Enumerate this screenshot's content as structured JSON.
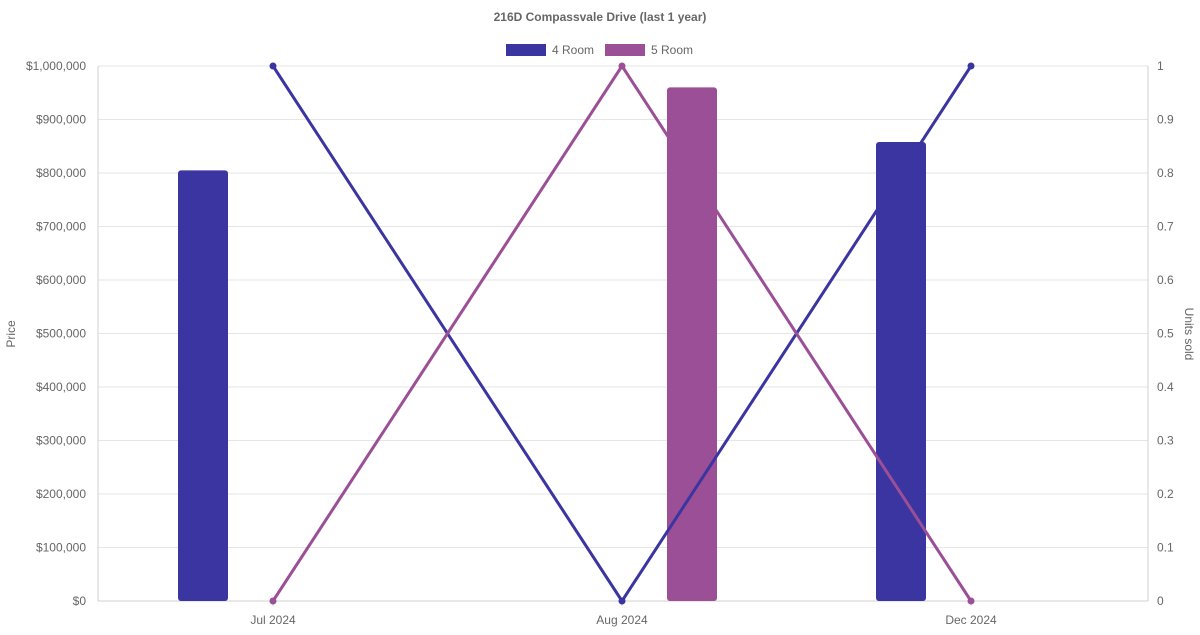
{
  "chart_data": {
    "type": "bar",
    "title": "216D Compassvale Drive (last 1 year)",
    "categories": [
      "Jul 2024",
      "Aug 2024",
      "Dec 2024"
    ],
    "y_left": {
      "label": "Price",
      "min": 0,
      "max": 1000000,
      "ticks": [
        "$0",
        "$100,000",
        "$200,000",
        "$300,000",
        "$400,000",
        "$500,000",
        "$600,000",
        "$700,000",
        "$800,000",
        "$900,000",
        "$1,000,000"
      ]
    },
    "y_right": {
      "label": "Units sold",
      "min": 0,
      "max": 1,
      "ticks": [
        "0",
        "0.1",
        "0.2",
        "0.3",
        "0.4",
        "0.5",
        "0.6",
        "0.7",
        "0.8",
        "0.9",
        "1"
      ]
    },
    "series": [
      {
        "name": "4 Room",
        "color": "#3a35a0",
        "bar_values": [
          805000,
          null,
          858000
        ],
        "line_values": [
          1,
          0,
          1
        ]
      },
      {
        "name": "5 Room",
        "color": "#9b4f96",
        "bar_values": [
          null,
          960000,
          null
        ],
        "line_values": [
          0,
          1,
          0
        ]
      }
    ],
    "legend": "top",
    "grid": true
  }
}
